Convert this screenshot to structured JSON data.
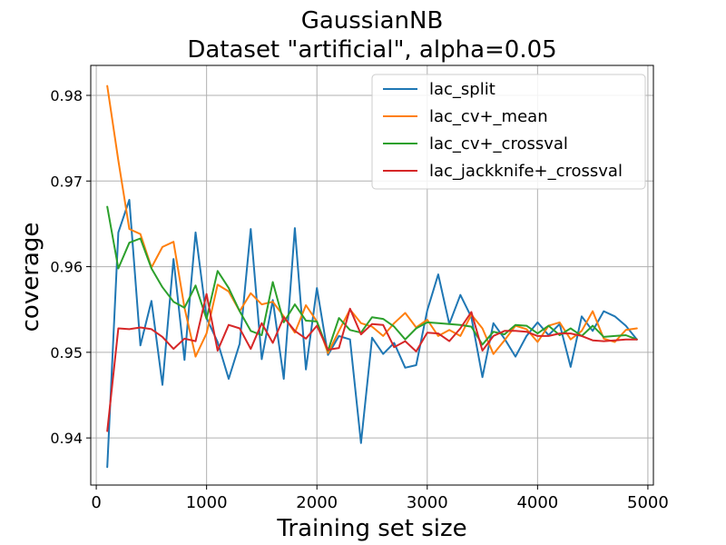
{
  "chart_data": {
    "type": "line",
    "title": "GaussianNB",
    "subtitle": "Dataset \"artificial\", alpha=0.05",
    "xlabel": "Training set size",
    "ylabel": "coverage",
    "xlim": [
      -50,
      5050
    ],
    "ylim": [
      0.9345,
      0.9835
    ],
    "xticks": [
      0,
      1000,
      2000,
      3000,
      4000,
      5000
    ],
    "yticks": [
      0.94,
      0.95,
      0.96,
      0.97,
      0.98
    ],
    "grid": true,
    "legend_position": "upper right",
    "x": [
      100,
      200,
      300,
      400,
      500,
      600,
      700,
      800,
      900,
      1000,
      1100,
      1200,
      1300,
      1400,
      1500,
      1600,
      1700,
      1800,
      1900,
      2000,
      2100,
      2200,
      2300,
      2400,
      2500,
      2600,
      2700,
      2800,
      2900,
      3000,
      3100,
      3200,
      3300,
      3400,
      3500,
      3600,
      3700,
      3800,
      3900,
      4000,
      4100,
      4200,
      4300,
      4400,
      4500,
      4600,
      4700,
      4800,
      4900
    ],
    "series": [
      {
        "name": "lac_split",
        "color": "#1f77b4",
        "values": [
          0.9366,
          0.964,
          0.9678,
          0.9508,
          0.956,
          0.9462,
          0.9609,
          0.9491,
          0.964,
          0.954,
          0.9512,
          0.9469,
          0.951,
          0.9644,
          0.9492,
          0.9561,
          0.9469,
          0.9645,
          0.948,
          0.9575,
          0.9497,
          0.9519,
          0.9515,
          0.9394,
          0.9517,
          0.9498,
          0.9511,
          0.9482,
          0.9485,
          0.9549,
          0.9591,
          0.9533,
          0.9567,
          0.9541,
          0.9471,
          0.9534,
          0.9516,
          0.9495,
          0.9519,
          0.9535,
          0.952,
          0.9533,
          0.9483,
          0.9542,
          0.9525,
          0.9548,
          0.9542,
          0.9531,
          0.9515
        ]
      },
      {
        "name": "lac_cv+_mean",
        "color": "#ff7f0e",
        "values": [
          0.9811,
          0.9724,
          0.9644,
          0.9638,
          0.9599,
          0.9623,
          0.9629,
          0.9552,
          0.9495,
          0.9522,
          0.9579,
          0.9571,
          0.9548,
          0.9569,
          0.9556,
          0.9559,
          0.9542,
          0.9523,
          0.9555,
          0.9536,
          0.9499,
          0.9525,
          0.955,
          0.9534,
          0.953,
          0.9519,
          0.9534,
          0.9546,
          0.9529,
          0.9538,
          0.9519,
          0.9526,
          0.9519,
          0.9544,
          0.9528,
          0.9498,
          0.9514,
          0.9531,
          0.9527,
          0.9512,
          0.9531,
          0.9535,
          0.9515,
          0.9525,
          0.9548,
          0.9516,
          0.9512,
          0.9526,
          0.9528
        ]
      },
      {
        "name": "lac_cv+_crossval",
        "color": "#2ca02c",
        "values": [
          0.967,
          0.9598,
          0.9628,
          0.9633,
          0.9598,
          0.9576,
          0.9559,
          0.9552,
          0.9578,
          0.9539,
          0.9595,
          0.9575,
          0.9548,
          0.9525,
          0.952,
          0.9582,
          0.9535,
          0.9556,
          0.9537,
          0.9536,
          0.9502,
          0.954,
          0.9526,
          0.9523,
          0.9541,
          0.9539,
          0.953,
          0.9515,
          0.9528,
          0.9535,
          0.9534,
          0.9533,
          0.9532,
          0.953,
          0.9509,
          0.9524,
          0.9521,
          0.9532,
          0.9531,
          0.9522,
          0.9531,
          0.952,
          0.9528,
          0.9519,
          0.9531,
          0.9518,
          0.9519,
          0.952,
          0.9515
        ]
      },
      {
        "name": "lac_jackknife+_crossval",
        "color": "#d62728",
        "values": [
          0.9408,
          0.9528,
          0.9527,
          0.9529,
          0.9527,
          0.9518,
          0.9504,
          0.9516,
          0.9513,
          0.9568,
          0.9502,
          0.9532,
          0.9528,
          0.9504,
          0.9534,
          0.9511,
          0.9541,
          0.9525,
          0.9516,
          0.9531,
          0.9503,
          0.9505,
          0.9551,
          0.9521,
          0.9533,
          0.9532,
          0.9506,
          0.9513,
          0.9501,
          0.9523,
          0.9522,
          0.9513,
          0.9528,
          0.9547,
          0.9502,
          0.9519,
          0.9525,
          0.9525,
          0.9524,
          0.9519,
          0.9519,
          0.9522,
          0.9522,
          0.9519,
          0.9514,
          0.9513,
          0.9514,
          0.9515,
          0.9515
        ]
      }
    ]
  }
}
